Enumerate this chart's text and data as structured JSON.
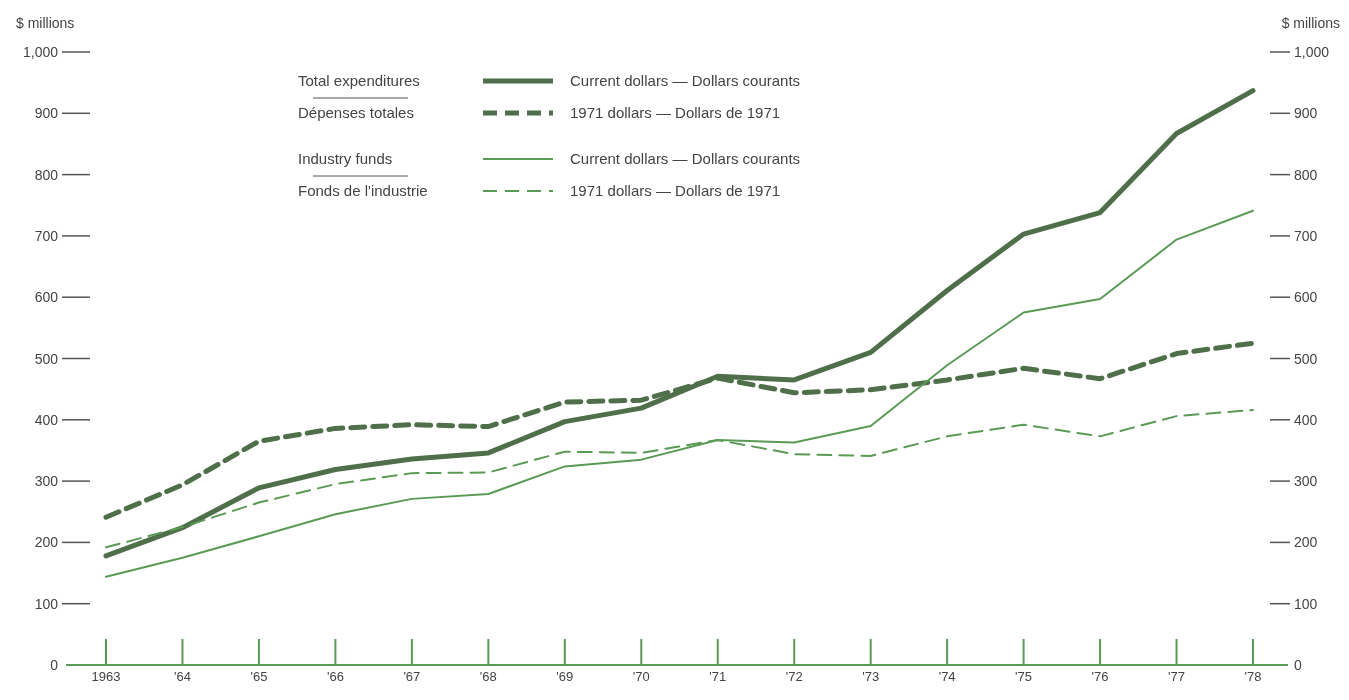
{
  "chart_data": {
    "type": "line",
    "ylabel": "$ millions",
    "y2label": "$ millions",
    "categories": [
      "1963",
      "'64",
      "'65",
      "'66",
      "'67",
      "'68",
      "'69",
      "'70",
      "'71",
      "'72",
      "'73",
      "'74",
      "'75",
      "'76",
      "'77",
      "'78"
    ],
    "ylim": [
      0,
      1000
    ],
    "yticks": [
      0,
      100,
      200,
      300,
      400,
      500,
      600,
      700,
      800,
      900,
      {
        "value": 1000,
        "label": "1,000"
      }
    ],
    "y2lim": [
      0,
      1000
    ],
    "y2ticks": [
      0,
      100,
      200,
      300,
      400,
      500,
      600,
      700,
      800,
      900,
      {
        "value": 1000,
        "label": "1,000"
      }
    ],
    "grid": false,
    "legend": "top left",
    "marker": "none",
    "annotations": [
      "Total expenditures",
      "Dépenses totales",
      "Industry funds",
      "Fonds de l'industrie"
    ],
    "series": [
      {
        "name": "Current dollars — Dollars courants",
        "color": "#4f6e4a",
        "line_style": "solid",
        "values": [
          178,
          224,
          289,
          319,
          336,
          346,
          397,
          419,
          471,
          465,
          510,
          611,
          703,
          738,
          867,
          937
        ]
      },
      {
        "name": "1971 dollars — Dollars de 1971",
        "color": "#4f6e4a",
        "line_style": "dashed",
        "values": [
          241,
          294,
          365,
          386,
          392,
          389,
          429,
          432,
          468,
          444,
          449,
          465,
          484,
          467,
          508,
          525
        ]
      },
      {
        "name": "Current dollars — Dollars courants",
        "color": "#5b9a56",
        "line_style": "solid",
        "values": [
          144,
          175,
          210,
          246,
          271,
          279,
          324,
          335,
          367,
          363,
          390,
          489,
          575,
          597,
          694,
          741
        ]
      },
      {
        "name": "1971 dollars — Dollars de 1971",
        "color": "#5b9a56",
        "line_style": "dashed",
        "values": [
          192,
          225,
          265,
          295,
          313,
          314,
          348,
          346,
          367,
          344,
          341,
          373,
          392,
          373,
          406,
          416
        ]
      }
    ]
  }
}
